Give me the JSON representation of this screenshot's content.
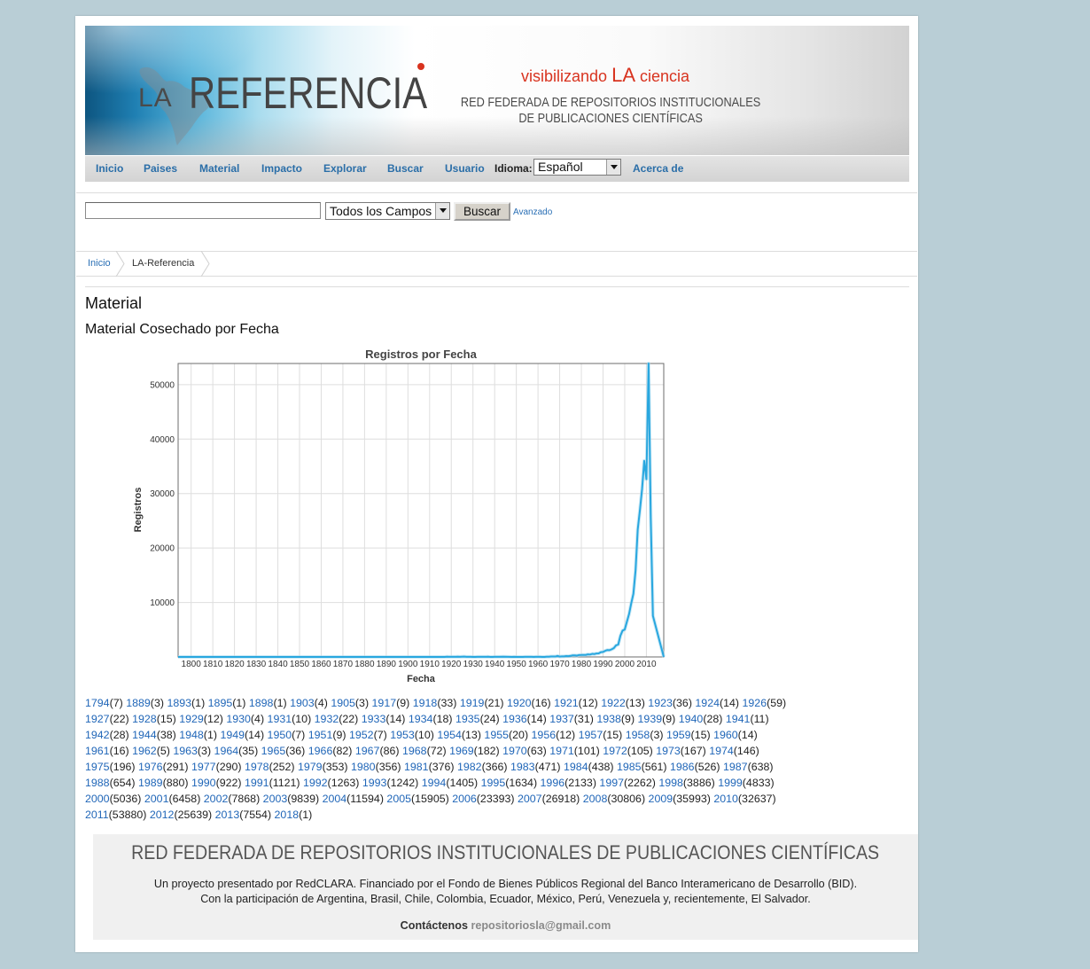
{
  "colors": {
    "page_background": "#b9ced6",
    "link": "#2066b8",
    "nav_link": "#2a6ea8",
    "brand_red": "#d8331f",
    "chart_line": "#29a7df",
    "footer_background": "#f0f0f0"
  },
  "banner": {
    "logo_prefix": "LA",
    "logo_main": "REFERENCIA",
    "tagline_pre": "visibilizando",
    "tagline_la": "LA",
    "tagline_post": "ciencia",
    "subtitle_line1": "RED FEDERADA DE REPOSITORIOS INSTITUCIONALES",
    "subtitle_line2": "DE PUBLICACIONES CIENTÍFICAS"
  },
  "nav": {
    "items": [
      {
        "label": "Inicio"
      },
      {
        "label": "Paises"
      },
      {
        "label": "Material"
      },
      {
        "label": "Impacto"
      },
      {
        "label": "Explorar"
      },
      {
        "label": "Buscar"
      },
      {
        "label": "Usuario"
      }
    ],
    "language_label": "Idioma:",
    "language_selected": "Español",
    "about_label": "Acerca de"
  },
  "search": {
    "query": "",
    "field_selected": "Todos los Campos",
    "button_label": "Buscar",
    "advanced_label": "Avanzado"
  },
  "breadcrumb": {
    "items": [
      "Inicio",
      "LA-Referencia"
    ]
  },
  "page": {
    "heading": "Material",
    "subheading": "Material Cosechado por Fecha"
  },
  "chart_data": {
    "type": "line",
    "title": "Registros por Fecha",
    "xlabel": "Fecha",
    "ylabel": "Registros",
    "xlim": [
      1794,
      2018
    ],
    "ylim": [
      0,
      53880
    ],
    "xticks": [
      1800,
      1810,
      1820,
      1830,
      1840,
      1850,
      1860,
      1870,
      1880,
      1890,
      1900,
      1910,
      1920,
      1930,
      1940,
      1950,
      1960,
      1970,
      1980,
      1990,
      2000,
      2010
    ],
    "yticks": [
      10000,
      20000,
      30000,
      40000,
      50000
    ],
    "grid": true,
    "x": [
      1794,
      1889,
      1893,
      1895,
      1898,
      1903,
      1905,
      1917,
      1918,
      1919,
      1920,
      1921,
      1922,
      1923,
      1924,
      1926,
      1927,
      1928,
      1929,
      1930,
      1931,
      1932,
      1933,
      1934,
      1935,
      1936,
      1937,
      1938,
      1939,
      1940,
      1941,
      1942,
      1944,
      1948,
      1949,
      1950,
      1951,
      1952,
      1953,
      1954,
      1955,
      1956,
      1957,
      1958,
      1959,
      1960,
      1961,
      1962,
      1963,
      1964,
      1965,
      1966,
      1967,
      1968,
      1969,
      1970,
      1971,
      1972,
      1973,
      1974,
      1975,
      1976,
      1977,
      1978,
      1979,
      1980,
      1981,
      1982,
      1983,
      1984,
      1985,
      1986,
      1987,
      1988,
      1989,
      1990,
      1991,
      1992,
      1993,
      1994,
      1995,
      1996,
      1997,
      1998,
      1999,
      2000,
      2001,
      2002,
      2003,
      2004,
      2005,
      2006,
      2007,
      2008,
      2009,
      2010,
      2011,
      2012,
      2013,
      2018
    ],
    "y": [
      7,
      3,
      1,
      1,
      1,
      4,
      3,
      9,
      33,
      21,
      16,
      12,
      13,
      36,
      14,
      59,
      22,
      15,
      12,
      4,
      10,
      22,
      14,
      18,
      24,
      14,
      31,
      9,
      9,
      28,
      11,
      28,
      38,
      1,
      14,
      7,
      9,
      7,
      10,
      13,
      20,
      12,
      15,
      3,
      15,
      14,
      16,
      5,
      3,
      35,
      36,
      82,
      86,
      72,
      182,
      63,
      101,
      105,
      167,
      146,
      196,
      291,
      290,
      252,
      353,
      356,
      376,
      366,
      471,
      438,
      561,
      526,
      638,
      654,
      880,
      922,
      1121,
      1263,
      1242,
      1405,
      1634,
      2133,
      2262,
      3886,
      4833,
      5036,
      6458,
      7868,
      9839,
      11594,
      15905,
      23393,
      26918,
      30806,
      35993,
      32637,
      53880,
      25639,
      7554,
      1
    ]
  },
  "footer": {
    "title": "RED FEDERADA DE REPOSITORIOS INSTITUCIONALES DE PUBLICACIONES CIENTÍFICAS",
    "line1": "Un proyecto presentado por RedCLARA. Financiado por el Fondo de Bienes Públicos Regional del Banco Interamericano de Desarrollo (BID).",
    "line2": "Con la participación de Argentina, Brasil, Chile, Colombia, Ecuador, México, Perú, Venezuela y, recientemente, El Salvador.",
    "contact_label": "Contáctenos",
    "contact_email": "repositoriosla@gmail.com"
  }
}
